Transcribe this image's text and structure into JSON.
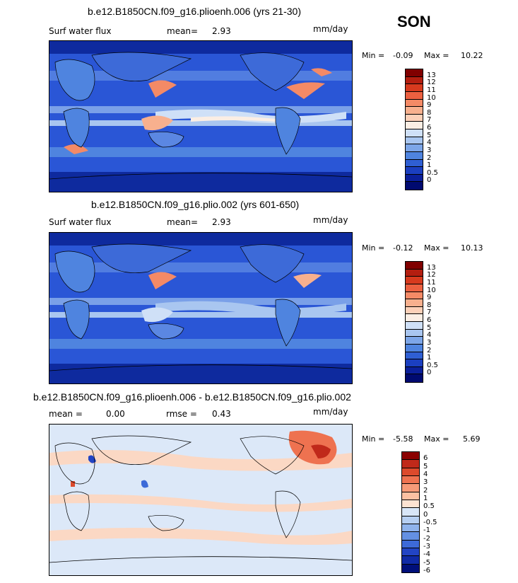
{
  "season": "SON",
  "panels": [
    {
      "title": "b.e12.B1850CN.f09_g16.plioenh.006 (yrs 21-30)",
      "left_label": "Surf water flux",
      "mean_label": "mean=",
      "mean_value": "2.93",
      "units": "mm/day",
      "min_label": "Min =",
      "min_value": "-0.09",
      "max_label": "Max =",
      "max_value": "10.22",
      "colorbar_labels": [
        "13",
        "12",
        "11",
        "10",
        "9",
        "8",
        "7",
        "6",
        "5",
        "4",
        "3",
        "2",
        "1",
        "0.5",
        "0"
      ]
    },
    {
      "title": "b.e12.B1850CN.f09_g16.plio.002 (yrs 601-650)",
      "left_label": "Surf water flux",
      "mean_label": "mean=",
      "mean_value": "2.93",
      "units": "mm/day",
      "min_label": "Min =",
      "min_value": "-0.12",
      "max_label": "Max =",
      "max_value": "10.13",
      "colorbar_labels": [
        "13",
        "12",
        "11",
        "10",
        "9",
        "8",
        "7",
        "6",
        "5",
        "4",
        "3",
        "2",
        "1",
        "0.5",
        "0"
      ]
    },
    {
      "title": "b.e12.B1850CN.f09_g16.plioenh.006 - b.e12.B1850CN.f09_g16.plio.002",
      "mean_label": "mean =",
      "mean_value": "0.00",
      "rmse_label": "rmse =",
      "rmse_value": "0.43",
      "units": "mm/day",
      "min_label": "Min =",
      "min_value": "-5.58",
      "max_label": "Max =",
      "max_value": "5.69",
      "colorbar_labels": [
        "6",
        "5",
        "4",
        "3",
        "2",
        "1",
        "0.5",
        "0",
        "-0.5",
        "-1",
        "-2",
        "-3",
        "-4",
        "-5",
        "-6"
      ]
    }
  ],
  "colors": {
    "abs_scale": [
      "#800000",
      "#b41e10",
      "#d73a1e",
      "#ec6040",
      "#f48a66",
      "#f8b08e",
      "#fcd0b8",
      "#fbeee4",
      "#cfe0f7",
      "#a9c6f0",
      "#7da6e8",
      "#4f84df",
      "#2f5fd3",
      "#1b3fc0",
      "#0b1f9a",
      "#000a70"
    ],
    "diff_scale": [
      "#8b0000",
      "#c0291a",
      "#dc4a2c",
      "#ee7250",
      "#f69a78",
      "#fbc0a2",
      "#fde3d2",
      "#d8e6f8",
      "#b6cff2",
      "#8fb3ec",
      "#6490e3",
      "#3d6ad8",
      "#2244c4",
      "#102aa6",
      "#000f7a"
    ],
    "map_deep": "#1a3fc8",
    "map_mid": "#5683e0",
    "map_light": "#c9dcf5",
    "map_warm": "#f5a080",
    "diff_bg": "#dce8f8",
    "diff_warm": "#fbd8c4"
  }
}
